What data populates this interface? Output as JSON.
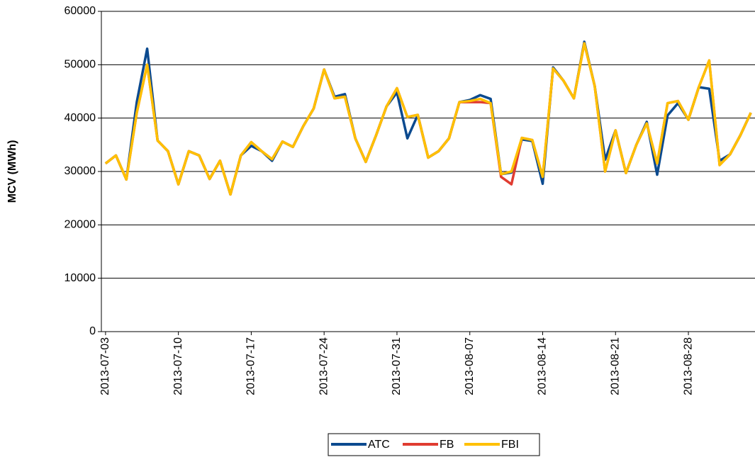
{
  "chart_data": {
    "type": "line",
    "y_label": "MCV (MWh)",
    "x": [
      "2013-07-03",
      "2013-07-04",
      "2013-07-05",
      "2013-07-06",
      "2013-07-07",
      "2013-07-08",
      "2013-07-09",
      "2013-07-10",
      "2013-07-11",
      "2013-07-12",
      "2013-07-13",
      "2013-07-14",
      "2013-07-15",
      "2013-07-16",
      "2013-07-17",
      "2013-07-18",
      "2013-07-19",
      "2013-07-20",
      "2013-07-21",
      "2013-07-22",
      "2013-07-23",
      "2013-07-24",
      "2013-07-25",
      "2013-07-26",
      "2013-07-27",
      "2013-07-28",
      "2013-07-29",
      "2013-07-30",
      "2013-07-31",
      "2013-08-01",
      "2013-08-02",
      "2013-08-03",
      "2013-08-04",
      "2013-08-05",
      "2013-08-06",
      "2013-08-07",
      "2013-08-08",
      "2013-08-09",
      "2013-08-10",
      "2013-08-11",
      "2013-08-12",
      "2013-08-13",
      "2013-08-14",
      "2013-08-15",
      "2013-08-16",
      "2013-08-17",
      "2013-08-18",
      "2013-08-19",
      "2013-08-20",
      "2013-08-21",
      "2013-08-22",
      "2013-08-23",
      "2013-08-24",
      "2013-08-25",
      "2013-08-26",
      "2013-08-27",
      "2013-08-28",
      "2013-08-29",
      "2013-08-30",
      "2013-08-31",
      "2013-09-01",
      "2013-09-02",
      "2013-09-03"
    ],
    "series": [
      {
        "name": "ATC",
        "color": "#0b4a8f",
        "values": [
          31500,
          33000,
          28500,
          43000,
          53000,
          35800,
          33800,
          27600,
          33800,
          33000,
          28600,
          32000,
          25700,
          33000,
          34800,
          33800,
          32000,
          35600,
          34600,
          38500,
          41800,
          49100,
          44000,
          44500,
          36200,
          31800,
          36800,
          42200,
          44800,
          36200,
          40600,
          32600,
          33800,
          36200,
          43000,
          43400,
          44300,
          43600,
          29500,
          29800,
          36000,
          35700,
          27700,
          49500,
          47000,
          43700,
          54300,
          46000,
          32200,
          37700,
          29700,
          35000,
          39300,
          29400,
          40500,
          42800,
          39700,
          45800,
          45500,
          32000,
          33200,
          36800,
          41000
        ]
      },
      {
        "name": "FB",
        "color": "#e03c31",
        "values": [
          31500,
          33000,
          28500,
          41000,
          50000,
          35800,
          33800,
          27600,
          33800,
          33000,
          28600,
          32000,
          25700,
          33000,
          35500,
          33800,
          32300,
          35600,
          34600,
          38500,
          41800,
          49100,
          43700,
          44000,
          36200,
          31800,
          36800,
          42200,
          45600,
          40200,
          40600,
          32600,
          33800,
          36200,
          43000,
          43000,
          43000,
          42800,
          29000,
          27600,
          36300,
          35900,
          29000,
          49300,
          47000,
          43700,
          54000,
          46000,
          30000,
          37700,
          29700,
          35000,
          39000,
          31500,
          42800,
          43200,
          39700,
          45800,
          50800,
          31200,
          33200,
          36800,
          41000
        ]
      },
      {
        "name": "FBI",
        "color": "#ffc000",
        "values": [
          31500,
          33000,
          28500,
          41000,
          50000,
          35800,
          33800,
          27600,
          33800,
          33000,
          28600,
          32000,
          25700,
          33000,
          35500,
          33800,
          32300,
          35600,
          34600,
          38500,
          41800,
          49100,
          43700,
          44000,
          36200,
          31800,
          36800,
          42200,
          45600,
          40200,
          40600,
          32600,
          33800,
          36200,
          43000,
          43200,
          43600,
          42800,
          29500,
          30000,
          36300,
          35900,
          29000,
          49300,
          47000,
          43700,
          54000,
          46000,
          30000,
          37700,
          29700,
          35000,
          39000,
          31500,
          42800,
          43200,
          39700,
          45800,
          50800,
          31200,
          33200,
          36800,
          41000
        ]
      }
    ],
    "xticks": [
      "2013-07-03",
      "2013-07-10",
      "2013-07-17",
      "2013-07-24",
      "2013-07-31",
      "2013-08-07",
      "2013-08-14",
      "2013-08-21",
      "2013-08-28"
    ],
    "ylim": [
      0,
      60000
    ],
    "yticks": [
      0,
      10000,
      20000,
      30000,
      40000,
      50000,
      60000
    ],
    "grid": true
  }
}
